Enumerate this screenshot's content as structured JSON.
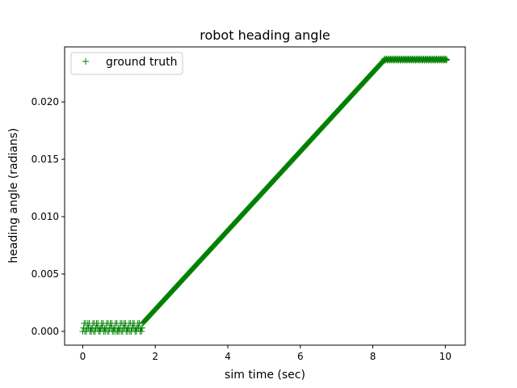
{
  "chart_data": {
    "type": "scatter",
    "title": "robot heading angle",
    "xlabel": "sim time (sec)",
    "ylabel": "heading angle (radians)",
    "xlim": [
      -0.5,
      10.55
    ],
    "ylim": [
      -0.0012,
      0.0248
    ],
    "xticks": [
      0,
      2,
      4,
      6,
      8,
      10
    ],
    "xtick_labels": [
      "0",
      "2",
      "4",
      "6",
      "8",
      "10"
    ],
    "yticks": [
      0.0,
      0.005,
      0.01,
      0.015,
      0.02
    ],
    "ytick_labels": [
      "0.000",
      "0.005",
      "0.010",
      "0.015",
      "0.020"
    ],
    "grid": false,
    "legend_position": "top-left",
    "marker": "+",
    "series": [
      {
        "name": "ground truth",
        "color": "#008000",
        "profile": {
          "t_start": 0.0,
          "t_end": 10.05,
          "step": 0.02,
          "noise_phase_end": 1.65,
          "noise_levels": [
            0.0,
            0.0003,
            0.0007
          ],
          "ramp_start": 1.65,
          "ramp_start_value": 0.0007,
          "slope": 0.003445,
          "plateau_start": 8.3,
          "plateau_value": 0.0237,
          "plateau_ripple": 0.00012
        }
      }
    ]
  }
}
